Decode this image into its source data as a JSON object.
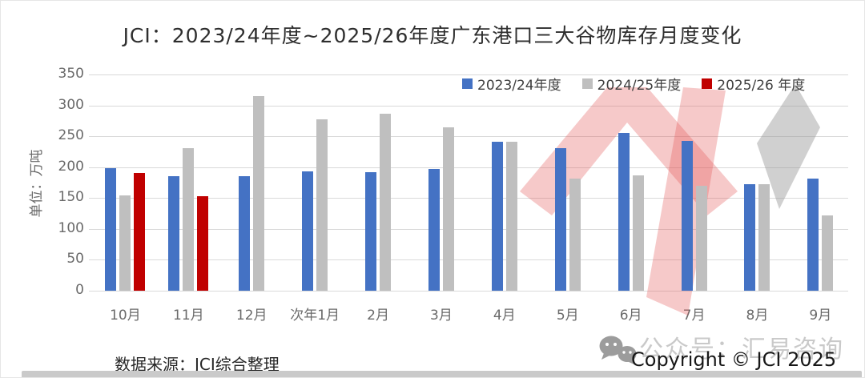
{
  "title": "JCI：2023/24年度~2025/26年度广东港口三大谷物库存月度变化",
  "y_axis": {
    "title": "单位：万吨"
  },
  "legend": {
    "items": [
      "2023/24年度",
      "2024/25年度",
      "2025/26 年度"
    ]
  },
  "footer": {
    "source": "数据来源：JCI综合整理",
    "copyright": "Copyright © JCI 2025"
  },
  "watermark": {
    "text": "公众号：汇易咨询",
    "icon": "wechat-icon"
  },
  "colors": {
    "series_blue": "#4472C4",
    "series_gray": "#BFBFBF",
    "series_red": "#C00000",
    "gridline": "#D9D9D9",
    "axis_text": "#6A6A6A",
    "watermark_red": "#E25858",
    "watermark_gray": "#969696"
  },
  "chart_data": {
    "type": "bar",
    "title": "JCI：2023/24年度~2025/26年度广东港口三大谷物库存月度变化",
    "xlabel": "",
    "ylabel": "单位：万吨",
    "ylim": [
      0,
      350
    ],
    "yticks": [
      0,
      50,
      100,
      150,
      200,
      250,
      300,
      350
    ],
    "grid": true,
    "legend_position": "top-right-inside",
    "categories": [
      "10月",
      "11月",
      "12月",
      "次年1月",
      "2月",
      "3月",
      "4月",
      "5月",
      "6月",
      "7月",
      "8月",
      "9月"
    ],
    "series": [
      {
        "name": "2023/24年度",
        "color": "#4472C4",
        "values": [
          198,
          185,
          185,
          193,
          192,
          197,
          241,
          231,
          255,
          243,
          172,
          181
        ]
      },
      {
        "name": "2024/25年度",
        "color": "#BFBFBF",
        "values": [
          154,
          231,
          315,
          278,
          286,
          264,
          241,
          181,
          187,
          170,
          173,
          122
        ]
      },
      {
        "name": "2025/26 年度",
        "color": "#C00000",
        "values": [
          190,
          153,
          null,
          null,
          null,
          null,
          null,
          null,
          null,
          null,
          null,
          null
        ]
      }
    ]
  }
}
